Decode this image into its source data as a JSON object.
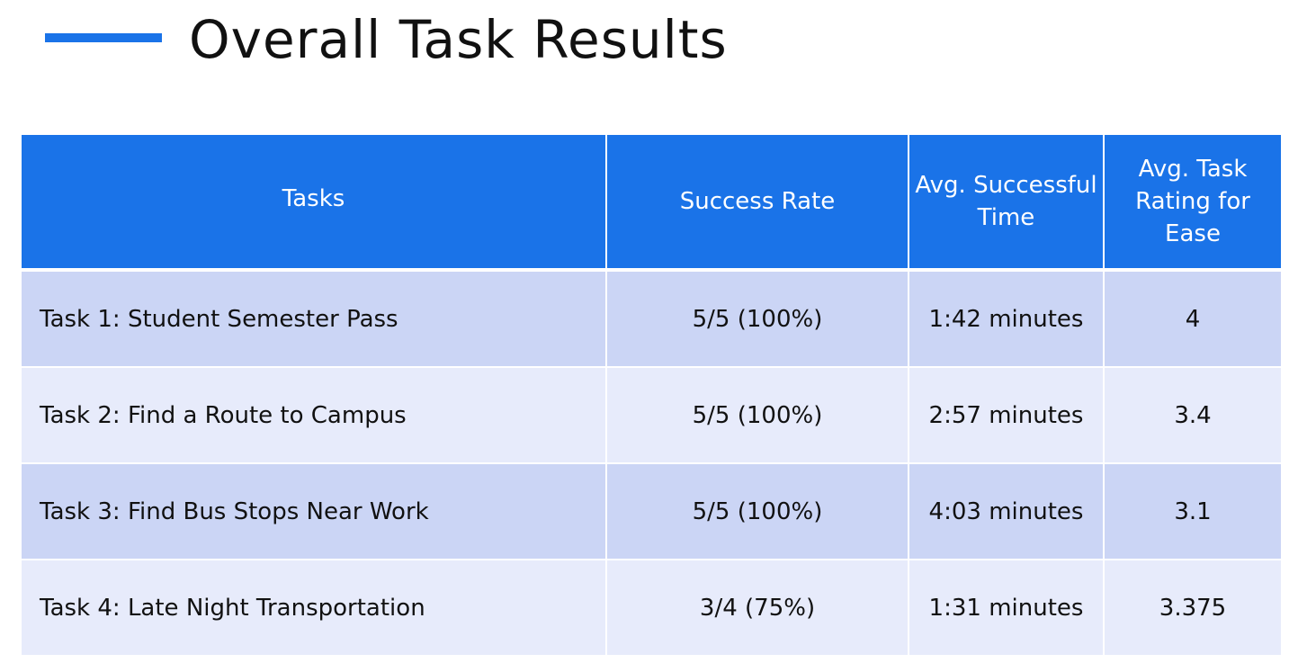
{
  "title": "Overall Task Results",
  "colors": {
    "accent": "#1a73e8",
    "header_bg": "#1a73e8",
    "row_odd": "#cbd5f5",
    "row_even": "#e7ebfb"
  },
  "table": {
    "headers": [
      "Tasks",
      "Success Rate",
      "Avg. Successful Time",
      "Avg. Task Rating for Ease"
    ],
    "rows": [
      [
        "Task 1: Student Semester Pass",
        "5/5 (100%)",
        "1:42 minutes",
        "4"
      ],
      [
        "Task 2: Find a Route to Campus",
        "5/5 (100%)",
        "2:57 minutes",
        "3.4"
      ],
      [
        "Task 3: Find Bus Stops Near Work",
        "5/5 (100%)",
        "4:03 minutes",
        "3.1"
      ],
      [
        "Task 4: Late Night Transportation",
        "3/4 (75%)",
        "1:31 minutes",
        "3.375"
      ]
    ]
  }
}
